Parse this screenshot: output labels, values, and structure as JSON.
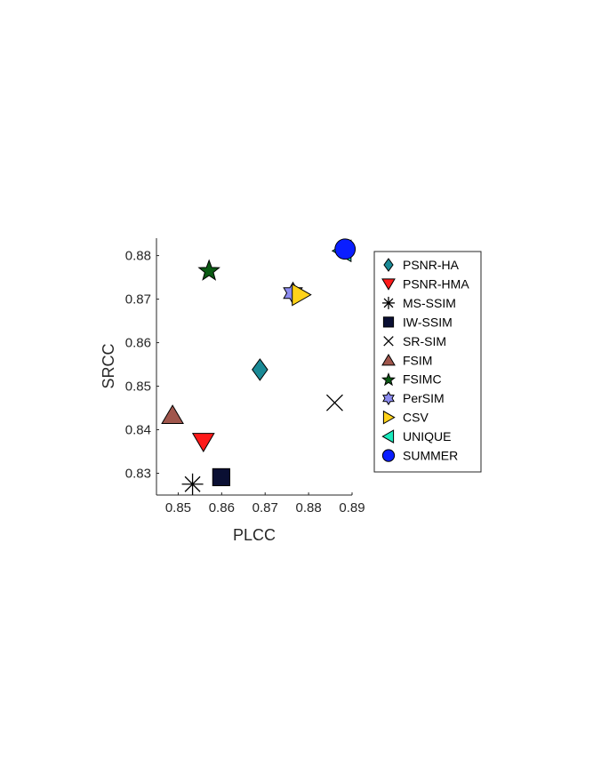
{
  "chart_data": {
    "type": "scatter",
    "xlabel": "PLCC",
    "ylabel": "SRCC",
    "xlim": [
      0.845,
      0.89
    ],
    "ylim": [
      0.825,
      0.884
    ],
    "xticks": [
      0.85,
      0.86,
      0.87,
      0.88,
      0.89
    ],
    "yticks": [
      0.83,
      0.84,
      0.85,
      0.86,
      0.87,
      0.88
    ],
    "legend_position": "outside-right",
    "series": [
      {
        "name": "PSNR-HA",
        "marker": "diamond",
        "color": "#1A8A96",
        "x": 0.8688,
        "y": 0.8538
      },
      {
        "name": "PSNR-HMA",
        "marker": "triangle-down",
        "color": "#FF1A1A",
        "x": 0.8558,
        "y": 0.8372
      },
      {
        "name": "MS-SSIM",
        "marker": "asterisk",
        "color": "#000000",
        "x": 0.8533,
        "y": 0.8275
      },
      {
        "name": "IW-SSIM",
        "marker": "square",
        "color": "#0A0F33",
        "x": 0.8599,
        "y": 0.8291
      },
      {
        "name": "SR-SIM",
        "marker": "x",
        "color": "#000000",
        "x": 0.886,
        "y": 0.8462
      },
      {
        "name": "FSIM",
        "marker": "triangle-up",
        "color": "#A0564C",
        "x": 0.8487,
        "y": 0.8434
      },
      {
        "name": "FSIMC",
        "marker": "star",
        "color": "#0B5A14",
        "x": 0.8571,
        "y": 0.8767
      },
      {
        "name": "PerSIM",
        "marker": "hexagram",
        "color": "#8B8BF0",
        "x": 0.8764,
        "y": 0.8714
      },
      {
        "name": "CSV",
        "marker": "triangle-right",
        "color": "#FFD21A",
        "x": 0.8782,
        "y": 0.871
      },
      {
        "name": "UNIQUE",
        "marker": "triangle-left",
        "color": "#1AEBBE",
        "x": 0.8878,
        "y": 0.8811
      },
      {
        "name": "SUMMER",
        "marker": "circle",
        "color": "#0A1EFF",
        "x": 0.8884,
        "y": 0.8815
      }
    ]
  }
}
